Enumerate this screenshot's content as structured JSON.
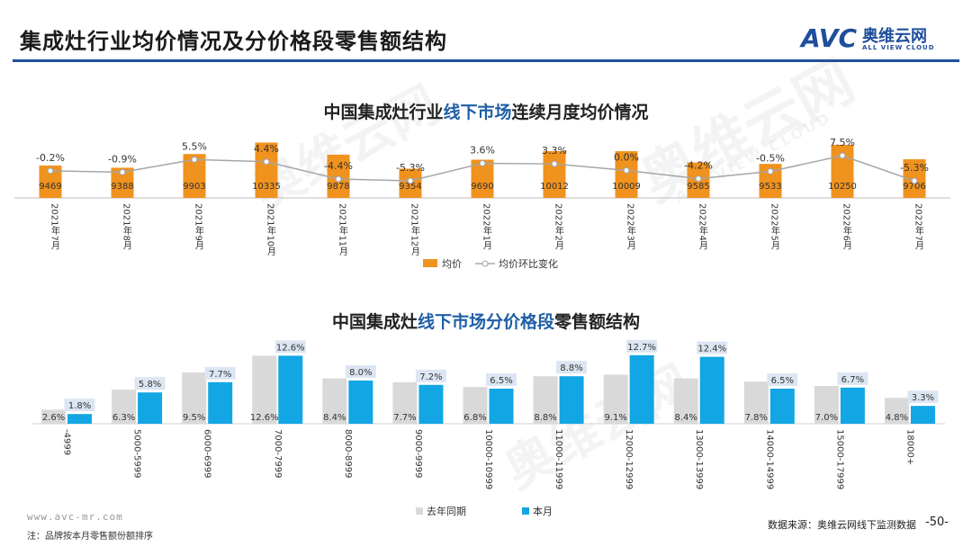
{
  "page": {
    "title": "集成灶行业均价情况及分价格段零售额结构",
    "logo_cn": "奥维云网",
    "logo_en": "ALL VIEW CLOUD",
    "logo_mark": "AVC",
    "watermark_cn": "奥维云网",
    "watermark_en": "ALL VIEW CLOUD",
    "footer_url": "www.avc-mr.com",
    "footer_note": "注：品牌按本月零售额份额排序",
    "footer_source": "数据来源：奥维云网线下监测数据",
    "page_number": "-50-"
  },
  "colors": {
    "brand": "#1f4e9c",
    "bar_orange": "#f0921e",
    "line_gray": "#a6a6a6",
    "bar_light": "#d9d9d9",
    "bar_blue": "#12a6e4",
    "label_box": "#dce6f2"
  },
  "chart_data": [
    {
      "type": "bar",
      "title_prefix": "中国集成灶行业",
      "title_highlight": "线下市场",
      "title_suffix": "连续月度均价情况",
      "categories": [
        "2021年7月",
        "2021年8月",
        "2021年9月",
        "2021年10月",
        "2021年11月",
        "2021年12月",
        "2022年1月",
        "2022年2月",
        "2022年3月",
        "2022年4月",
        "2022年5月",
        "2022年6月",
        "2022年7月"
      ],
      "series": [
        {
          "name": "均价",
          "kind": "bar",
          "values": [
            9469,
            9388,
            9903,
            10335,
            9878,
            9354,
            9690,
            10012,
            10009,
            9585,
            9533,
            10250,
            9706
          ]
        },
        {
          "name": "均价环比变化",
          "kind": "line",
          "values": [
            -0.2,
            -0.9,
            5.5,
            4.4,
            -4.4,
            -5.3,
            3.6,
            3.3,
            0.0,
            -4.2,
            -0.5,
            7.5,
            -5.3
          ],
          "labels": [
            "-0.2%",
            "-0.9%",
            "5.5%",
            "4.4%",
            "-4.4%",
            "-5.3%",
            "3.6%",
            "3.3%",
            "0.0%",
            "-4.2%",
            "-0.5%",
            "7.5%",
            "-5.3%"
          ]
        }
      ],
      "legend": [
        "均价",
        "均价环比变化"
      ]
    },
    {
      "type": "bar",
      "title_prefix": "中国集成灶",
      "title_highlight": "线下市场分价格段",
      "title_suffix": "零售额结构",
      "categories": [
        "-4999",
        "5000-5999",
        "6000-6999",
        "7000-7999",
        "8000-8999",
        "9000-9999",
        "10000-10999",
        "11000-11999",
        "12000-12999",
        "13000-13999",
        "14000-14999",
        "15000-17999",
        "18000+"
      ],
      "series": [
        {
          "name": "去年同期",
          "values": [
            2.6,
            6.3,
            9.5,
            12.6,
            8.4,
            7.7,
            6.8,
            8.8,
            9.1,
            8.4,
            7.8,
            7.0,
            4.8
          ],
          "labels": [
            "2.6%",
            "6.3%",
            "9.5%",
            "12.6%",
            "8.4%",
            "7.7%",
            "6.8%",
            "8.8%",
            "9.1%",
            "8.4%",
            "7.8%",
            "7.0%",
            "4.8%"
          ]
        },
        {
          "name": "本月",
          "values": [
            1.8,
            5.8,
            7.7,
            12.6,
            8.0,
            7.2,
            6.5,
            8.8,
            12.7,
            12.4,
            6.5,
            6.7,
            3.3
          ],
          "labels": [
            "1.8%",
            "5.8%",
            "7.7%",
            "12.6%",
            "8.0%",
            "7.2%",
            "6.5%",
            "8.8%",
            "12.7%",
            "12.4%",
            "6.5%",
            "6.7%",
            "3.3%"
          ]
        }
      ],
      "legend": [
        "去年同期",
        "本月"
      ]
    }
  ]
}
